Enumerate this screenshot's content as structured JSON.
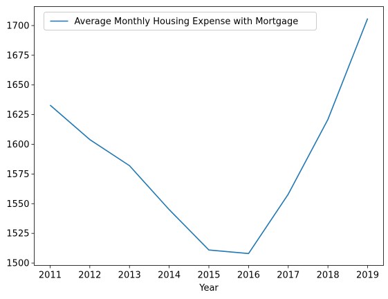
{
  "chart_data": {
    "type": "line",
    "title": "",
    "xlabel": "Year",
    "ylabel": "",
    "x": [
      2011,
      2012,
      2013,
      2014,
      2015,
      2016,
      2017,
      2018,
      2019
    ],
    "series": [
      {
        "name": "Average Monthly Housing Expense with Mortgage",
        "color": "#1f77b4",
        "values": [
          1633,
          1604,
          1582,
          1545,
          1511,
          1508,
          1558,
          1621,
          1706
        ]
      }
    ],
    "xticks": [
      "2011",
      "2012",
      "2013",
      "2014",
      "2015",
      "2016",
      "2017",
      "2018",
      "2019"
    ],
    "yticks": [
      "1500",
      "1525",
      "1550",
      "1575",
      "1600",
      "1625",
      "1650",
      "1675",
      "1700"
    ],
    "ylim": [
      1498,
      1716
    ],
    "xlim": [
      2010.6,
      2019.4
    ],
    "grid": false,
    "legend_position": "top-left"
  }
}
